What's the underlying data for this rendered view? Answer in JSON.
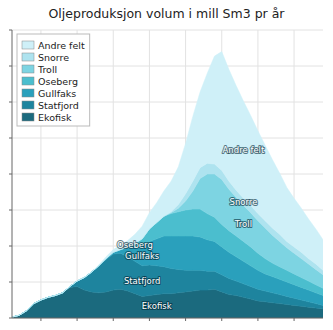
{
  "chart_data": {
    "type": "area",
    "title": "Oljeproduksjon volum i mill Sm3 pr år",
    "stacked": true,
    "x": [
      1971,
      1972,
      1973,
      1974,
      1975,
      1976,
      1977,
      1978,
      1979,
      1980,
      1981,
      1982,
      1983,
      1984,
      1985,
      1986,
      1987,
      1988,
      1989,
      1990,
      1991,
      1992,
      1993,
      1994,
      1995,
      1996,
      1997,
      1998,
      1999,
      2000,
      2001,
      2002,
      2003,
      2004,
      2005,
      2006,
      2007,
      2008,
      2009,
      2010,
      2011,
      2012,
      2013,
      2014
    ],
    "series": [
      {
        "name": "Ekofisk",
        "color": "#1b6a7e",
        "values": [
          0.5,
          1.5,
          4.0,
          8.0,
          10.0,
          11.5,
          12.5,
          14.0,
          17.0,
          17.5,
          15.5,
          14.5,
          14.0,
          14.5,
          15.5,
          16.0,
          15.0,
          13.5,
          12.0,
          12.5,
          13.0,
          13.5,
          13.5,
          14.0,
          14.5,
          15.0,
          15.5,
          15.5,
          16.0,
          14.5,
          13.0,
          12.5,
          11.5,
          10.5,
          9.5,
          9.0,
          8.5,
          8.0,
          7.5,
          7.0,
          6.5,
          6.0,
          5.5,
          5.0
        ]
      },
      {
        "name": "Statfjord",
        "color": "#1e849e",
        "values": [
          0.0,
          0.0,
          0.0,
          0.0,
          0.0,
          0.0,
          0.0,
          0.0,
          0.5,
          3.0,
          7.0,
          11.0,
          15.0,
          18.0,
          20.0,
          20.0,
          19.0,
          18.0,
          17.0,
          17.0,
          16.0,
          15.0,
          14.0,
          13.0,
          12.0,
          11.5,
          11.0,
          10.5,
          10.0,
          9.5,
          9.0,
          8.0,
          7.5,
          7.0,
          6.5,
          6.0,
          5.5,
          5.0,
          4.5,
          4.0,
          3.5,
          3.0,
          2.5,
          2.0
        ]
      },
      {
        "name": "Gullfaks",
        "color": "#2aa0bc",
        "values": [
          0.0,
          0.0,
          0.0,
          0.0,
          0.0,
          0.0,
          0.0,
          0.0,
          0.0,
          0.0,
          0.0,
          0.0,
          0.0,
          0.5,
          1.0,
          2.0,
          5.0,
          8.0,
          11.0,
          13.0,
          15.0,
          17.0,
          18.0,
          18.5,
          19.0,
          19.0,
          18.5,
          17.5,
          16.5,
          15.5,
          14.5,
          13.5,
          12.5,
          11.5,
          10.5,
          9.5,
          9.0,
          8.5,
          8.0,
          7.5,
          7.0,
          6.5,
          6.0,
          5.5
        ]
      },
      {
        "name": "Oseberg",
        "color": "#4bbece",
        "values": [
          0.0,
          0.0,
          0.0,
          0.0,
          0.0,
          0.0,
          0.0,
          0.0,
          0.0,
          0.0,
          0.0,
          0.0,
          0.0,
          0.0,
          0.0,
          0.0,
          0.5,
          2.0,
          4.0,
          7.0,
          9.0,
          11.0,
          12.5,
          13.5,
          14.5,
          15.0,
          15.5,
          14.5,
          13.5,
          12.5,
          12.0,
          11.5,
          11.0,
          10.5,
          9.5,
          8.5,
          7.5,
          7.0,
          6.5,
          6.0,
          5.5,
          5.0,
          4.5,
          4.0
        ]
      },
      {
        "name": "Troll",
        "color": "#7dd4e2",
        "values": [
          0.0,
          0.0,
          0.0,
          0.0,
          0.0,
          0.0,
          0.0,
          0.0,
          0.0,
          0.0,
          0.0,
          0.0,
          0.0,
          0.0,
          0.0,
          0.0,
          0.0,
          0.0,
          0.0,
          0.0,
          0.0,
          0.0,
          0.5,
          2.0,
          5.0,
          10.0,
          17.0,
          22.0,
          24.0,
          25.0,
          23.0,
          21.5,
          20.0,
          19.0,
          18.0,
          17.0,
          15.5,
          14.0,
          12.5,
          11.5,
          10.5,
          9.5,
          8.5,
          7.5
        ]
      },
      {
        "name": "Snorre",
        "color": "#aee3ef",
        "values": [
          0.0,
          0.0,
          0.0,
          0.0,
          0.0,
          0.0,
          0.0,
          0.0,
          0.0,
          0.0,
          0.0,
          0.0,
          0.0,
          0.0,
          0.0,
          0.0,
          0.0,
          0.0,
          0.0,
          0.0,
          0.0,
          0.0,
          0.5,
          2.0,
          4.0,
          5.5,
          6.0,
          6.0,
          5.5,
          5.0,
          4.5,
          4.0,
          4.0,
          4.0,
          4.0,
          4.0,
          4.0,
          4.0,
          3.5,
          3.5,
          3.5,
          3.0,
          3.0,
          2.5
        ]
      },
      {
        "name": "Andre felt",
        "color": "#cff0f8",
        "values": [
          0.0,
          0.0,
          0.0,
          0.0,
          0.0,
          0.0,
          0.0,
          0.0,
          0.0,
          0.0,
          0.0,
          0.0,
          0.5,
          1.0,
          1.5,
          2.5,
          3.5,
          5.0,
          7.0,
          9.0,
          11.0,
          14.0,
          17.0,
          21.0,
          28.0,
          36.0,
          42.0,
          50.0,
          60.0,
          66.0,
          62.0,
          58.0,
          54.0,
          50.0,
          46.0,
          42.0,
          38.0,
          34.0,
          30.0,
          27.0,
          24.5,
          22.0,
          19.5,
          17.0
        ]
      }
    ],
    "xlim": [
      1971,
      2014
    ],
    "xticks": [
      1975,
      1980,
      1985,
      1990,
      1995,
      2000,
      2005,
      2010
    ],
    "ylim": [
      0,
      160
    ],
    "yticks": [
      0,
      20,
      40,
      60,
      80,
      100,
      120,
      140,
      160
    ],
    "grid": true,
    "tick_labels": false,
    "legend": "upper left",
    "annotations": [
      {
        "text": "Ekofisk",
        "x": 1991,
        "y": 6.5
      },
      {
        "text": "Statfjord",
        "x": 1989,
        "y": 20.5
      },
      {
        "text": "Gullfaks",
        "x": 1989,
        "y": 34.5
      },
      {
        "text": "Oseberg",
        "x": 1988,
        "y": 40.5
      },
      {
        "text": "Troll",
        "x": 2003,
        "y": 52.5
      },
      {
        "text": "Snorre",
        "x": 2003,
        "y": 64.5
      },
      {
        "text": "Andre felt",
        "x": 2003,
        "y": 93.5
      }
    ]
  }
}
